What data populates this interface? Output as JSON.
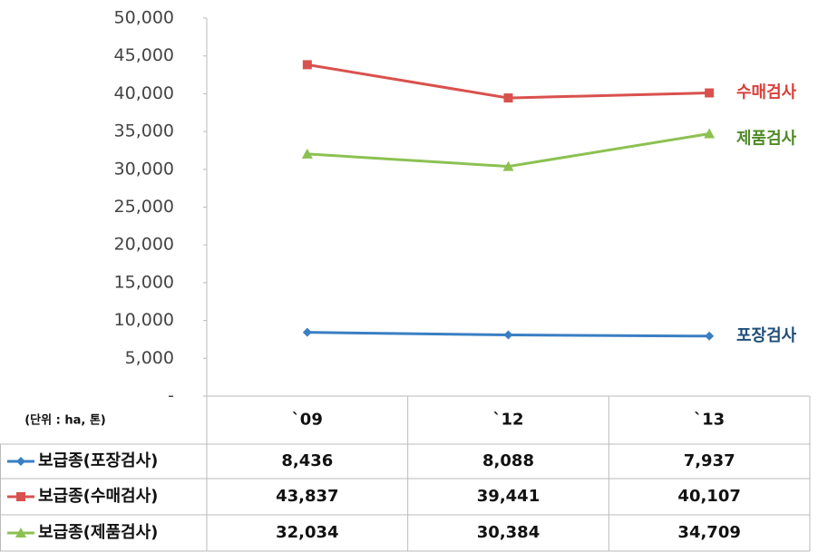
{
  "chart_data": {
    "type": "line",
    "unit_label": "(단위 : ha, 톤)",
    "categories": [
      "`09",
      "`12",
      "`13"
    ],
    "ylim": [
      0,
      50000
    ],
    "yticks": [
      {
        "value": 0,
        "label": "-"
      },
      {
        "value": 5000,
        "label": "5,000"
      },
      {
        "value": 10000,
        "label": "10,000"
      },
      {
        "value": 15000,
        "label": "15,000"
      },
      {
        "value": 20000,
        "label": "20,000"
      },
      {
        "value": 25000,
        "label": "25,000"
      },
      {
        "value": 30000,
        "label": "30,000"
      },
      {
        "value": 35000,
        "label": "35,000"
      },
      {
        "value": 40000,
        "label": "40,000"
      },
      {
        "value": 45000,
        "label": "45,000"
      },
      {
        "value": 50000,
        "label": "50,000"
      }
    ],
    "series": [
      {
        "name": "보급종(포장검사)",
        "label": "포장검사",
        "color": "#3a7fc3",
        "label_color": "#1f4e79",
        "marker": "diamond",
        "values": [
          8436,
          8088,
          7937
        ],
        "value_labels": [
          "8,436",
          "8,088",
          "7,937"
        ]
      },
      {
        "name": "보급종(수매검사)",
        "label": "수매검사",
        "color": "#d9514e",
        "label_color": "#d9403a",
        "marker": "square",
        "values": [
          43837,
          39441,
          40107
        ],
        "value_labels": [
          "43,837",
          "39,441",
          "40,107"
        ]
      },
      {
        "name": "보급종(제품검사)",
        "label": "제품검사",
        "color": "#8cc152",
        "label_color": "#4f8a25",
        "marker": "triangle",
        "values": [
          32034,
          30384,
          34709
        ],
        "value_labels": [
          "32,034",
          "30,384",
          "34,709"
        ]
      }
    ]
  }
}
